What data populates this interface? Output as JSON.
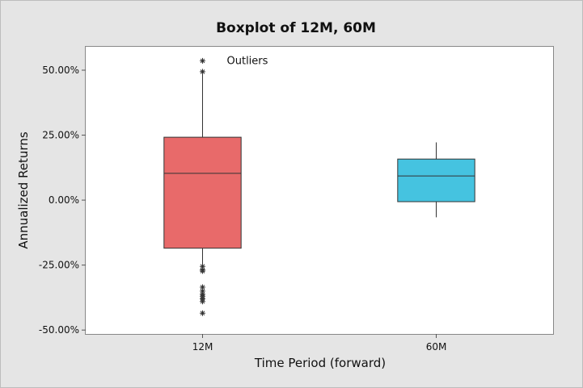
{
  "chart_data": {
    "type": "boxplot",
    "title": "Boxplot of 12M, 60M",
    "xlabel": "Time Period (forward)",
    "ylabel": "Annualized Returns",
    "ylim": [
      -51.5,
      59
    ],
    "yticks": [
      {
        "value": 50,
        "label": "50.00%"
      },
      {
        "value": 25,
        "label": "25.00%"
      },
      {
        "value": 0,
        "label": "0.00%"
      },
      {
        "value": -25,
        "label": "-25.00%"
      },
      {
        "value": -50,
        "label": "-50.00%"
      }
    ],
    "grid": false,
    "categories": [
      "12M",
      "60M"
    ],
    "boxes": [
      {
        "category": "12M",
        "color": "#e86a6a",
        "whisker_low": -25.0,
        "q1": -18.5,
        "median": 10.3,
        "q3": 24.2,
        "whisker_high": 50.0,
        "outliers": [
          53.6,
          49.4,
          -25.5,
          -26.8,
          -27.3,
          -33.5,
          -35.0,
          -36.2,
          -37.0,
          -38.0,
          -39.0,
          -43.5
        ]
      },
      {
        "category": "60M",
        "color": "#45c3e0",
        "whisker_low": -6.6,
        "q1": -0.6,
        "median": 9.3,
        "q3": 15.8,
        "whisker_high": 22.2,
        "outliers": []
      }
    ],
    "annotations": [
      {
        "text": "Outliers",
        "category": "12M",
        "value": 53.5
      }
    ]
  }
}
